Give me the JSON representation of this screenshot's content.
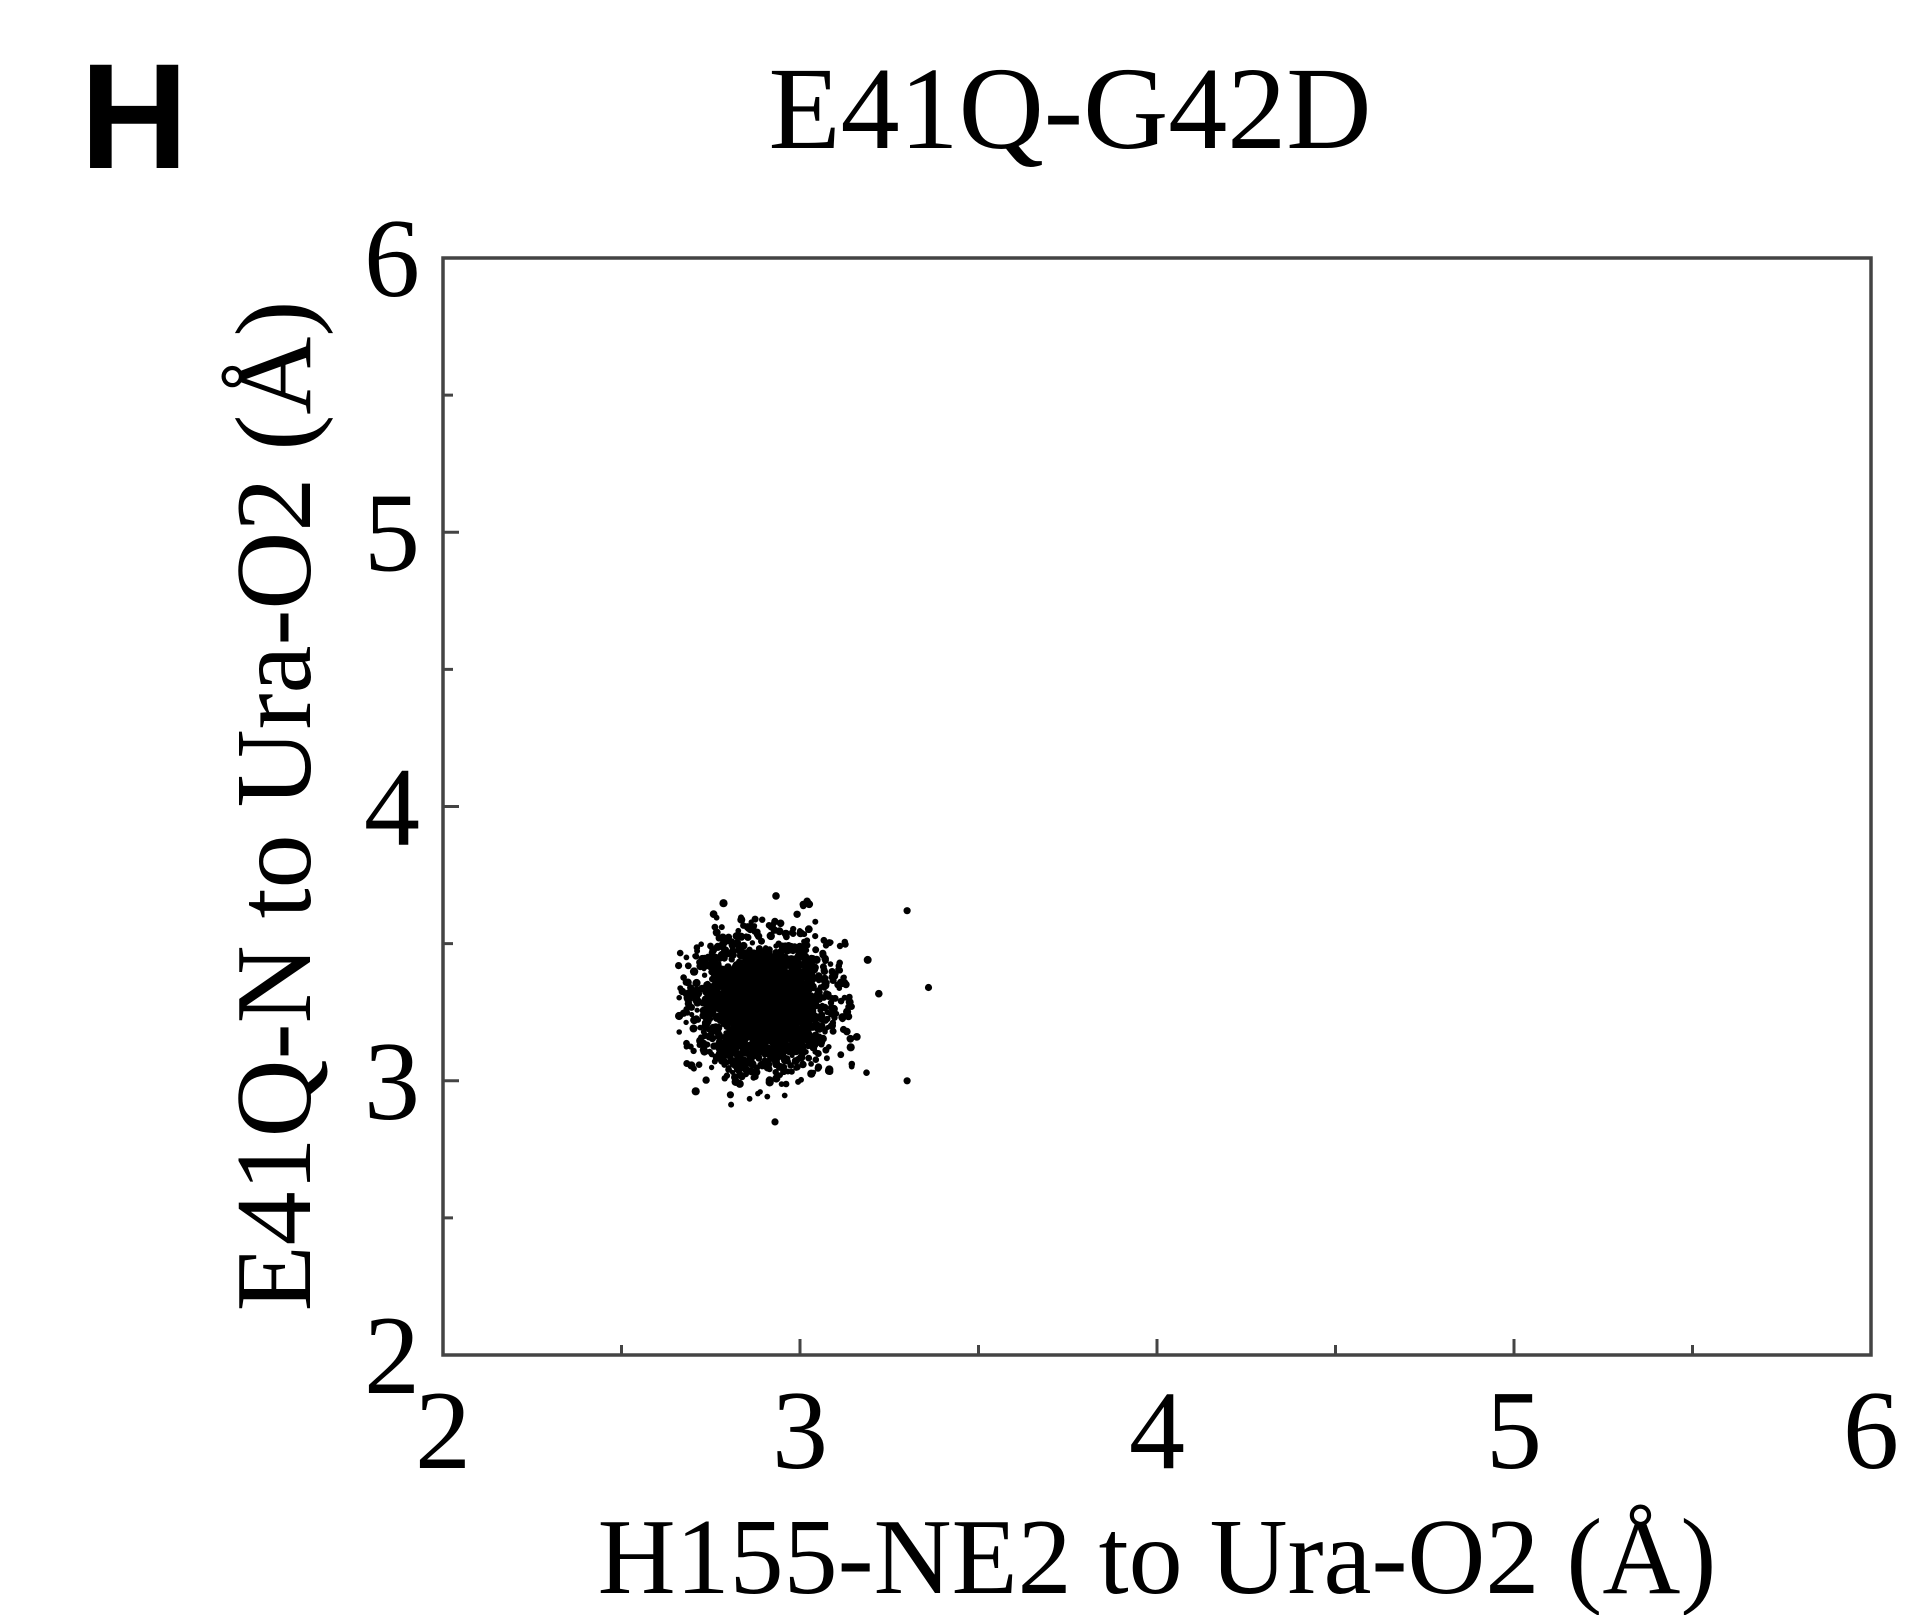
{
  "panel_label": "H",
  "chart_data": {
    "type": "scatter",
    "title": "E41Q-G42D",
    "xlabel": "H155-NE2 to Ura-O2 (Å)",
    "ylabel": "E41Q-N to Ura-O2 (Å)",
    "xlim": [
      2,
      6
    ],
    "ylim": [
      2,
      6
    ],
    "x_ticks": [
      "2",
      "3",
      "4",
      "5",
      "6"
    ],
    "y_ticks": [
      "2",
      "3",
      "4",
      "5",
      "6"
    ],
    "x_minor_ticks": [
      2.5,
      3.5,
      4.5,
      5.5
    ],
    "y_minor_ticks": [
      2.5,
      3.5,
      4.5,
      5.5
    ],
    "grid": false,
    "legend": "none",
    "marker_color": "#000000",
    "cluster": {
      "center_x": 2.9,
      "center_y": 3.28,
      "std_x": 0.09,
      "std_y": 0.11,
      "x_range": [
        2.66,
        3.33
      ],
      "y_range": [
        2.85,
        3.68
      ]
    },
    "outliers": [
      {
        "x": 3.3,
        "y": 3.62
      },
      {
        "x": 3.36,
        "y": 3.34
      },
      {
        "x": 3.3,
        "y": 3.0
      },
      {
        "x": 2.93,
        "y": 2.85
      },
      {
        "x": 2.66,
        "y": 3.42
      }
    ]
  }
}
